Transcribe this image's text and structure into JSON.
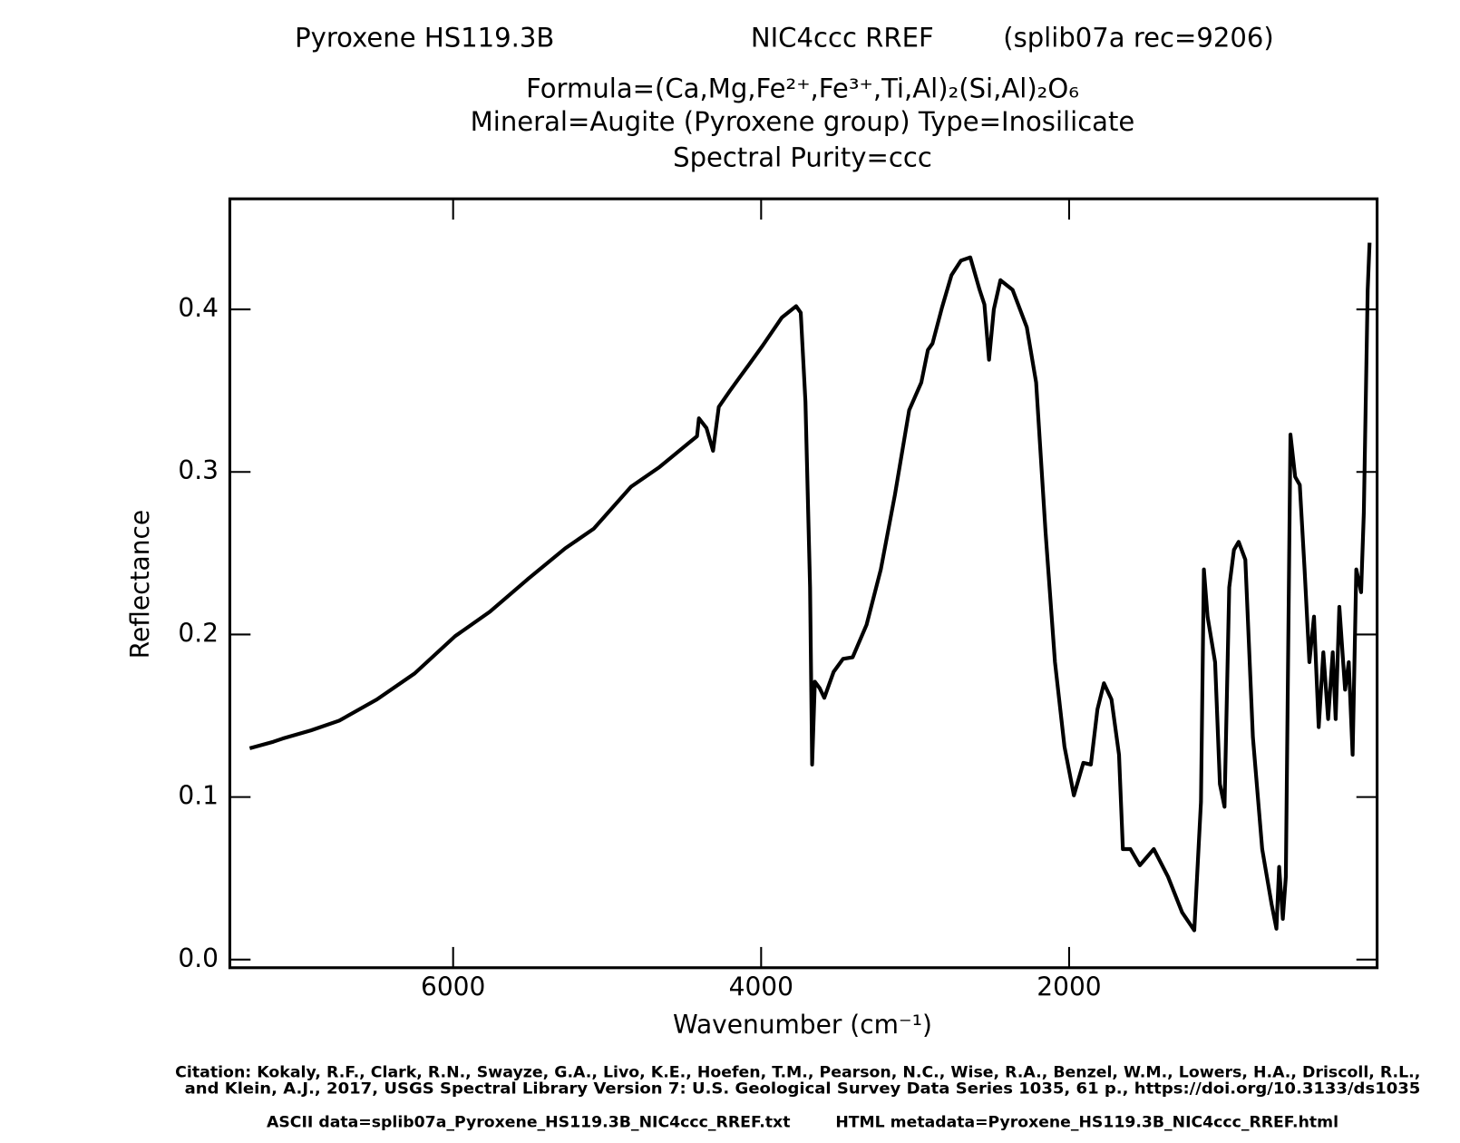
{
  "chart_data": {
    "type": "line",
    "title_parts": [
      "Pyroxene HS119.3B",
      "NIC4ccc RREF",
      "(splib07a rec=9206)"
    ],
    "subtitle_lines": [
      "Formula=(Ca,Mg,Fe²⁺,Fe³⁺,Ti,Al)₂(Si,Al)₂O₆",
      "Mineral=Augite (Pyroxene group)   Type=Inosilicate",
      "Spectral Purity=ccc"
    ],
    "x_label": "Wavenumber (cm⁻¹)",
    "y_label": "Reflectance",
    "citation": [
      "Citation: Kokaly, R.F., Clark, R.N., Swayze, G.A., Livo, K.E., Hoefen, T.M., Pearson, N.C., Wise, R.A., Benzel, W.M., Lowers, H.A., Driscoll, R.L.,",
      "and Klein, A.J., 2017, USGS Spectral Library Version 7: U.S. Geological Survey Data Series 1035, 61 p., https://doi.org/10.3133/ds1035"
    ],
    "files": [
      "ASCII data=splib07a_Pyroxene_HS119.3B_NIC4ccc_RREF.txt",
      "HTML metadata=Pyroxene_HS119.3B_NIC4ccc_RREF.html"
    ],
    "color": "#000000",
    "xlim": [
      7450,
      0
    ],
    "ylim": [
      -0.005,
      0.468
    ],
    "xticks": [
      6000,
      4000,
      2000
    ],
    "yticks": [
      {
        "value": 0,
        "label": "0.0"
      },
      0.1,
      0.2,
      0.3,
      0.4
    ],
    "x": [
      7321,
      7168,
      7107,
      6923,
      6740,
      6495,
      6250,
      5987,
      5761,
      5516,
      5272,
      5088,
      4844,
      4660,
      4416,
      4404,
      4355,
      4312,
      4275,
      4202,
      4141,
      4079,
      3988,
      3865,
      3773,
      3743,
      3712,
      3682,
      3669,
      3651,
      3620,
      3590,
      3529,
      3468,
      3406,
      3315,
      3223,
      3131,
      3039,
      2960,
      2917,
      2887,
      2826,
      2764,
      2703,
      2642,
      2581,
      2550,
      2520,
      2489,
      2446,
      2367,
      2275,
      2214,
      2153,
      2092,
      2030,
      1969,
      1908,
      1859,
      1816,
      1774,
      1725,
      1676,
      1651,
      1602,
      1541,
      1450,
      1358,
      1266,
      1187,
      1144,
      1125,
      1101,
      1052,
      1021,
      991,
      960,
      930,
      899,
      856,
      807,
      746,
      685,
      654,
      636,
      612,
      593,
      563,
      532,
      502,
      471,
      440,
      410,
      379,
      349,
      318,
      288,
      269,
      245,
      208,
      184,
      159,
      135,
      104,
      86,
      61,
      49
    ],
    "values": [
      0.13,
      0.134,
      0.136,
      0.141,
      0.147,
      0.16,
      0.176,
      0.199,
      0.214,
      0.234,
      0.253,
      0.265,
      0.291,
      0.303,
      0.322,
      0.333,
      0.327,
      0.313,
      0.34,
      0.35,
      0.358,
      0.366,
      0.378,
      0.395,
      0.402,
      0.398,
      0.343,
      0.229,
      0.12,
      0.171,
      0.167,
      0.161,
      0.177,
      0.185,
      0.186,
      0.206,
      0.24,
      0.286,
      0.338,
      0.355,
      0.375,
      0.379,
      0.401,
      0.421,
      0.43,
      0.432,
      0.412,
      0.403,
      0.369,
      0.4,
      0.418,
      0.412,
      0.389,
      0.355,
      0.263,
      0.183,
      0.131,
      0.101,
      0.121,
      0.12,
      0.154,
      0.17,
      0.16,
      0.126,
      0.068,
      0.068,
      0.058,
      0.068,
      0.051,
      0.029,
      0.018,
      0.097,
      0.24,
      0.211,
      0.183,
      0.108,
      0.094,
      0.229,
      0.252,
      0.257,
      0.246,
      0.137,
      0.068,
      0.034,
      0.019,
      0.057,
      0.025,
      0.051,
      0.323,
      0.297,
      0.292,
      0.24,
      0.183,
      0.211,
      0.143,
      0.189,
      0.148,
      0.189,
      0.148,
      0.217,
      0.166,
      0.183,
      0.126,
      0.24,
      0.226,
      0.275,
      0.412,
      0.441
    ]
  }
}
